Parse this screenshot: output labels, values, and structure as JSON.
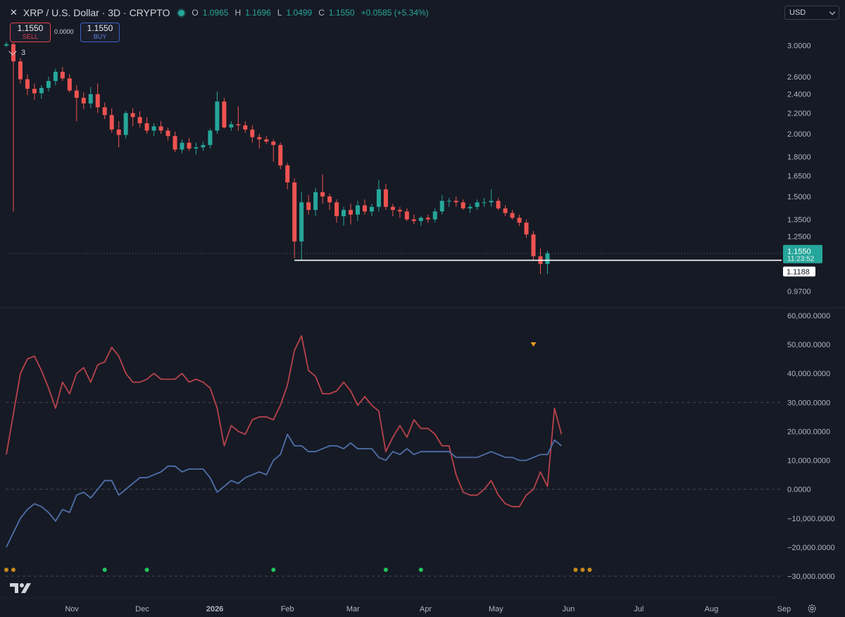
{
  "header": {
    "symbol": "XRP / U.S. Dollar · 3D · CRYPTO",
    "open_label": "O",
    "open": "1.0965",
    "high_label": "H",
    "high": "1.1696",
    "low_label": "L",
    "low": "1.0499",
    "close_label": "C",
    "close": "1.1550",
    "change": "+0.0585 (+5.34%)"
  },
  "trade": {
    "sell_price": "1.1550",
    "sell_label": "SELL",
    "buy_price": "1.1550",
    "buy_label": "BUY",
    "spread": "0.0000"
  },
  "indicators_count": "3",
  "currency": "USD",
  "colors": {
    "background": "#161a25",
    "up": "#26a69a",
    "down": "#ef5350",
    "series_red": "#b7434b",
    "series_blue": "#4f6fa8",
    "dot_green": "#22c55e",
    "dot_orange": "#c98a1a"
  },
  "icons": [
    "close-icon",
    "status-dot-icon",
    "chevron-down-icon",
    "tradingview-logo-icon",
    "settings-gear-icon",
    "warning-triangle-icon"
  ],
  "chart_data": [
    {
      "type": "candlestick",
      "scale": "log",
      "ylim": [
        0.92,
        3.25
      ],
      "y_ticks": [
        "3.0000",
        "2.6000",
        "2.4000",
        "2.2000",
        "2.0000",
        "1.8000",
        "1.6500",
        "1.5000",
        "1.3500",
        "1.2500",
        "0.9700"
      ],
      "x_ticks": [
        "Nov",
        "Dec",
        "2026",
        "Feb",
        "Mar",
        "Apr",
        "May",
        "Jun",
        "Jul",
        "Aug",
        "Sep"
      ],
      "interval_days": 3,
      "first_bar": "2025-10-04",
      "ohlc": [
        [
          3.0,
          3.05,
          2.98,
          3.02
        ],
        [
          3.02,
          3.08,
          1.4,
          2.79
        ],
        [
          2.79,
          2.83,
          2.52,
          2.57
        ],
        [
          2.57,
          2.63,
          2.39,
          2.46
        ],
        [
          2.46,
          2.52,
          2.34,
          2.41
        ],
        [
          2.41,
          2.5,
          2.35,
          2.47
        ],
        [
          2.47,
          2.6,
          2.43,
          2.55
        ],
        [
          2.55,
          2.7,
          2.5,
          2.66
        ],
        [
          2.66,
          2.72,
          2.55,
          2.58
        ],
        [
          2.58,
          2.63,
          2.42,
          2.44
        ],
        [
          2.44,
          2.5,
          2.12,
          2.36
        ],
        [
          2.36,
          2.42,
          2.24,
          2.3
        ],
        [
          2.3,
          2.48,
          2.25,
          2.4
        ],
        [
          2.4,
          2.52,
          2.2,
          2.26
        ],
        [
          2.26,
          2.31,
          2.14,
          2.18
        ],
        [
          2.18,
          2.25,
          2.01,
          2.04
        ],
        [
          2.04,
          2.12,
          1.88,
          1.99
        ],
        [
          1.99,
          2.22,
          1.96,
          2.2
        ],
        [
          2.2,
          2.25,
          2.07,
          2.16
        ],
        [
          2.16,
          2.22,
          2.06,
          2.1
        ],
        [
          2.1,
          2.16,
          2.0,
          2.03
        ],
        [
          2.03,
          2.1,
          1.98,
          2.07
        ],
        [
          2.07,
          2.12,
          2.0,
          2.03
        ],
        [
          2.03,
          2.06,
          1.94,
          1.98
        ],
        [
          1.98,
          2.02,
          1.84,
          1.86
        ],
        [
          1.86,
          1.95,
          1.83,
          1.92
        ],
        [
          1.92,
          1.96,
          1.85,
          1.87
        ],
        [
          1.87,
          1.92,
          1.82,
          1.88
        ],
        [
          1.88,
          1.93,
          1.85,
          1.9
        ],
        [
          1.9,
          2.05,
          1.87,
          2.03
        ],
        [
          2.03,
          2.43,
          2.0,
          2.32
        ],
        [
          2.32,
          2.36,
          2.05,
          2.06
        ],
        [
          2.06,
          2.12,
          2.03,
          2.09
        ],
        [
          2.09,
          2.27,
          2.03,
          2.08
        ],
        [
          2.08,
          2.12,
          2.01,
          2.04
        ],
        [
          2.04,
          2.08,
          1.92,
          1.97
        ],
        [
          1.97,
          2.0,
          1.87,
          1.95
        ],
        [
          1.95,
          1.98,
          1.91,
          1.93
        ],
        [
          1.93,
          1.95,
          1.76,
          1.9
        ],
        [
          1.9,
          1.92,
          1.7,
          1.73
        ],
        [
          1.73,
          1.75,
          1.55,
          1.6
        ],
        [
          1.6,
          1.63,
          1.13,
          1.22
        ],
        [
          1.22,
          1.53,
          1.12,
          1.46
        ],
        [
          1.46,
          1.51,
          1.38,
          1.41
        ],
        [
          1.41,
          1.56,
          1.37,
          1.53
        ],
        [
          1.53,
          1.66,
          1.45,
          1.5
        ],
        [
          1.5,
          1.52,
          1.41,
          1.46
        ],
        [
          1.46,
          1.48,
          1.33,
          1.37
        ],
        [
          1.37,
          1.43,
          1.31,
          1.41
        ],
        [
          1.41,
          1.45,
          1.32,
          1.38
        ],
        [
          1.38,
          1.47,
          1.34,
          1.44
        ],
        [
          1.44,
          1.48,
          1.38,
          1.4
        ],
        [
          1.4,
          1.45,
          1.37,
          1.43
        ],
        [
          1.43,
          1.62,
          1.4,
          1.55
        ],
        [
          1.55,
          1.59,
          1.41,
          1.43
        ],
        [
          1.43,
          1.45,
          1.37,
          1.41
        ],
        [
          1.41,
          1.43,
          1.36,
          1.4
        ],
        [
          1.4,
          1.42,
          1.34,
          1.35
        ],
        [
          1.35,
          1.38,
          1.32,
          1.34
        ],
        [
          1.34,
          1.37,
          1.31,
          1.36
        ],
        [
          1.36,
          1.38,
          1.33,
          1.35
        ],
        [
          1.35,
          1.42,
          1.33,
          1.4
        ],
        [
          1.4,
          1.51,
          1.38,
          1.47
        ],
        [
          1.47,
          1.49,
          1.43,
          1.47
        ],
        [
          1.47,
          1.5,
          1.43,
          1.46
        ],
        [
          1.46,
          1.48,
          1.41,
          1.42
        ],
        [
          1.42,
          1.45,
          1.39,
          1.43
        ],
        [
          1.43,
          1.48,
          1.41,
          1.46
        ],
        [
          1.46,
          1.49,
          1.43,
          1.46
        ],
        [
          1.46,
          1.55,
          1.43,
          1.47
        ],
        [
          1.47,
          1.49,
          1.41,
          1.42
        ],
        [
          1.42,
          1.44,
          1.37,
          1.39
        ],
        [
          1.39,
          1.41,
          1.35,
          1.36
        ],
        [
          1.36,
          1.38,
          1.31,
          1.33
        ],
        [
          1.33,
          1.35,
          1.24,
          1.26
        ],
        [
          1.26,
          1.28,
          1.12,
          1.14
        ],
        [
          1.14,
          1.18,
          1.05,
          1.1
        ],
        [
          1.1,
          1.17,
          1.05,
          1.155
        ]
      ],
      "current_price_label": "1.1550",
      "countdown": "11:23:52",
      "horizontal_line_label": "1.1188",
      "horizontal_line_value": 1.1188,
      "horizontal_line_from_bar": 41
    },
    {
      "type": "line",
      "ylim": [
        -30000000,
        60000000
      ],
      "y_ticks": [
        "60,000.0000",
        "50,000.0000",
        "40,000.0000",
        "30,000.0000",
        "20,000.0000",
        "10,000.0000",
        "0.0000",
        "−10,000.0000",
        "−20,000.0000",
        "−30,000.0000"
      ],
      "reference_lines": [
        30000000,
        0,
        -30000000
      ],
      "series": [
        {
          "color": "#b7434b",
          "values": [
            12,
            26,
            40,
            45,
            46,
            41,
            35,
            28,
            37,
            33,
            40,
            42,
            37,
            43,
            44,
            49,
            46,
            40,
            37,
            37,
            38,
            40,
            38,
            38,
            38,
            40,
            37,
            38,
            37,
            35,
            28,
            15,
            22,
            20,
            19,
            24,
            25,
            25,
            24,
            29,
            36,
            48,
            53,
            41,
            39,
            33,
            33,
            34,
            37,
            34,
            29,
            32,
            29,
            27,
            13,
            18,
            22,
            18,
            24,
            21,
            21,
            19,
            15,
            15,
            5,
            -1,
            -2,
            -2,
            0,
            3,
            -2,
            -5,
            -6,
            -6,
            -2,
            0,
            6,
            1,
            28,
            19
          ]
        },
        {
          "color": "#4f6fa8",
          "values": [
            -20,
            -15,
            -10,
            -7,
            -5,
            -6,
            -8,
            -11,
            -7,
            -8,
            -2,
            -1,
            -3,
            0,
            3,
            3,
            -2,
            0,
            2,
            4,
            4,
            5,
            6,
            8,
            8,
            6,
            7,
            7,
            7,
            4,
            -1,
            1,
            3,
            2,
            4,
            5,
            6,
            5,
            10,
            12,
            19,
            15,
            15,
            13,
            13,
            14,
            15,
            15,
            14,
            16,
            14,
            14,
            14,
            11,
            10,
            13,
            12,
            14,
            12,
            13,
            13,
            13,
            13,
            13,
            11,
            11,
            11,
            11,
            12,
            13,
            12,
            11,
            11,
            10,
            10,
            11,
            12,
            12,
            17,
            15
          ]
        }
      ],
      "series_scale": 1000000,
      "markers": {
        "triangle_bar": 75,
        "green_dots_bars": [
          14,
          20,
          38,
          54,
          59
        ],
        "orange_dots_bars": [
          0,
          1,
          81,
          82,
          83
        ]
      }
    }
  ]
}
